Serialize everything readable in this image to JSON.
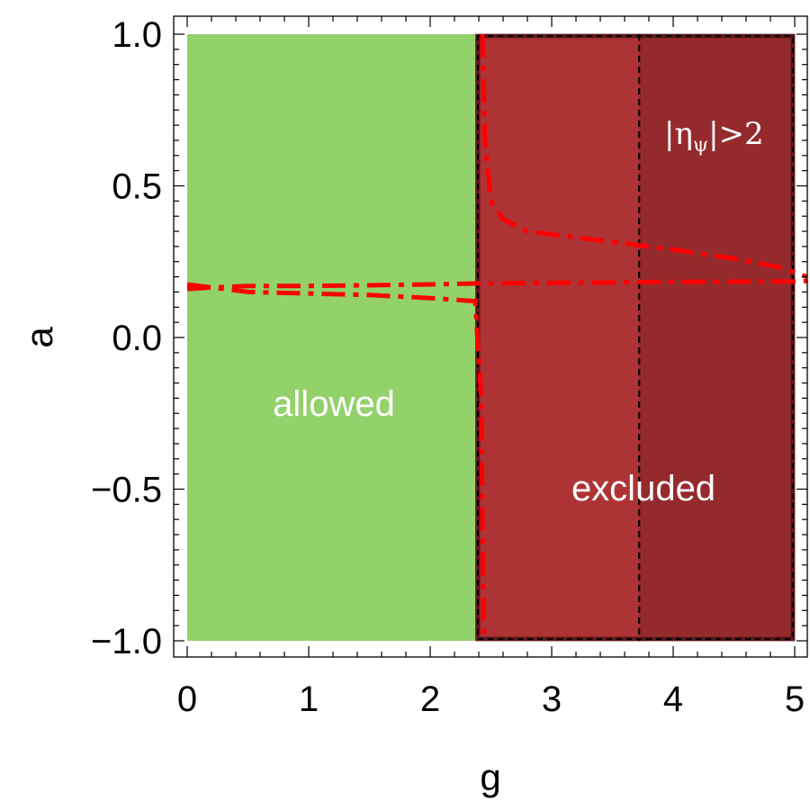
{
  "chart_data": {
    "type": "region",
    "xlabel": "g",
    "ylabel": "a",
    "xlim": [
      0,
      5.1
    ],
    "ylim": [
      -1,
      1
    ],
    "x_ticks": [
      "0",
      "1",
      "2",
      "3",
      "4",
      "5"
    ],
    "y_ticks": [
      "−1.0",
      "−0.5",
      "0.0",
      "0.5",
      "1.0"
    ],
    "regions": [
      {
        "label": "allowed",
        "g_range": [
          0,
          2.37
        ],
        "a_range": [
          -1,
          1
        ],
        "color": "#93d16a"
      },
      {
        "label": "excluded",
        "g_range": [
          2.37,
          5.0
        ],
        "a_range": [
          -1,
          1
        ],
        "color": "#ad3334"
      },
      {
        "eta_symbol": "η",
        "eta_sub": "ψ",
        "eta_suffix": "|>2",
        "g_range": [
          3.72,
          5.0
        ],
        "a_range": [
          -1,
          1
        ],
        "color": "#952a2d"
      }
    ],
    "curves": [
      {
        "style": "dash-dot",
        "color": "#ff0000",
        "points": [
          [
            0,
            0.16
          ],
          [
            0.2,
            0.165
          ],
          [
            0.5,
            0.17
          ],
          [
            1.0,
            0.17
          ],
          [
            1.5,
            0.172
          ],
          [
            2.0,
            0.175
          ],
          [
            2.37,
            0.178
          ],
          [
            3.0,
            0.18
          ],
          [
            4.0,
            0.183
          ],
          [
            5.0,
            0.185
          ],
          [
            5.1,
            0.186
          ]
        ]
      },
      {
        "style": "dash-dot",
        "color": "#ff0000",
        "points": [
          [
            0,
            0.175
          ],
          [
            0.5,
            0.15
          ],
          [
            1.0,
            0.145
          ],
          [
            1.5,
            0.14
          ],
          [
            2.0,
            0.13
          ],
          [
            2.37,
            0.12
          ],
          [
            2.42,
            -0.2
          ],
          [
            2.44,
            -1.0
          ]
        ]
      },
      {
        "style": "dash-dot",
        "color": "#ff0000",
        "points": [
          [
            2.43,
            1.0
          ],
          [
            2.45,
            0.65
          ],
          [
            2.5,
            0.45
          ],
          [
            2.6,
            0.39
          ],
          [
            2.8,
            0.35
          ],
          [
            3.2,
            0.33
          ],
          [
            3.6,
            0.31
          ],
          [
            4.0,
            0.29
          ],
          [
            4.5,
            0.26
          ],
          [
            4.9,
            0.23
          ],
          [
            5.1,
            0.2
          ]
        ]
      }
    ],
    "boundaries": [
      {
        "style": "dashed",
        "color": "#000000",
        "g": 3.72,
        "a_range": [
          -1,
          1
        ]
      }
    ],
    "grid": false
  }
}
